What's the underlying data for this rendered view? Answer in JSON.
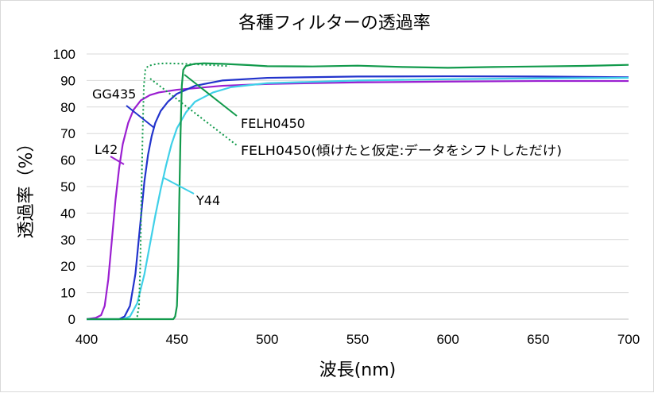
{
  "chart_data": {
    "type": "line",
    "title": "各種フィルターの透過率",
    "xlabel": "波長(nm)",
    "ylabel": "透過率（%）",
    "xlim": [
      400,
      700
    ],
    "ylim": [
      0,
      100
    ],
    "xticks": [
      400,
      450,
      500,
      550,
      600,
      650,
      700
    ],
    "yticks": [
      0,
      10,
      20,
      30,
      40,
      50,
      60,
      70,
      80,
      90,
      100
    ],
    "grid": "horizontal",
    "legend": "none",
    "series": [
      {
        "name": "L42",
        "color": "#9b1fd1",
        "dashed": false,
        "points": [
          [
            400,
            0
          ],
          [
            405,
            0.5
          ],
          [
            408,
            1.5
          ],
          [
            410,
            5
          ],
          [
            412,
            15
          ],
          [
            414,
            30
          ],
          [
            416,
            45
          ],
          [
            418,
            57
          ],
          [
            420,
            66
          ],
          [
            423,
            74
          ],
          [
            426,
            79
          ],
          [
            430,
            82.5
          ],
          [
            435,
            84.5
          ],
          [
            440,
            85.5
          ],
          [
            450,
            86.5
          ],
          [
            475,
            88
          ],
          [
            500,
            88.7
          ],
          [
            550,
            89.3
          ],
          [
            600,
            89.6
          ],
          [
            650,
            89.8
          ],
          [
            700,
            89.8
          ]
        ]
      },
      {
        "name": "GG435",
        "color": "#2233cc",
        "dashed": false,
        "points": [
          [
            400,
            0
          ],
          [
            418,
            0
          ],
          [
            421,
            1
          ],
          [
            424,
            5
          ],
          [
            427,
            17
          ],
          [
            430,
            38
          ],
          [
            432,
            52
          ],
          [
            434,
            62
          ],
          [
            436,
            69
          ],
          [
            438,
            74
          ],
          [
            441,
            78.5
          ],
          [
            445,
            82
          ],
          [
            450,
            85
          ],
          [
            460,
            88
          ],
          [
            475,
            90
          ],
          [
            500,
            91
          ],
          [
            550,
            91.5
          ],
          [
            600,
            91.6
          ],
          [
            650,
            91.5
          ],
          [
            700,
            91.2
          ]
        ]
      },
      {
        "name": "Y44",
        "color": "#3fd0e8",
        "dashed": false,
        "points": [
          [
            400,
            0
          ],
          [
            420,
            0
          ],
          [
            424,
            1
          ],
          [
            428,
            6
          ],
          [
            432,
            17
          ],
          [
            435,
            28
          ],
          [
            438,
            39
          ],
          [
            441,
            49
          ],
          [
            444,
            58
          ],
          [
            447,
            66
          ],
          [
            450,
            72
          ],
          [
            455,
            78
          ],
          [
            460,
            82
          ],
          [
            470,
            85.5
          ],
          [
            480,
            87.5
          ],
          [
            500,
            89
          ],
          [
            550,
            90
          ],
          [
            600,
            90.5
          ],
          [
            650,
            90.8
          ],
          [
            700,
            91
          ]
        ]
      },
      {
        "name": "FELH0450",
        "color": "#129a4c",
        "dashed": false,
        "points": [
          [
            400,
            0
          ],
          [
            448,
            0
          ],
          [
            449,
            1
          ],
          [
            450,
            5
          ],
          [
            450.7,
            20
          ],
          [
            451.3,
            45
          ],
          [
            452,
            70
          ],
          [
            452.7,
            88
          ],
          [
            453.5,
            94
          ],
          [
            455,
            95.5
          ],
          [
            460,
            96.3
          ],
          [
            465,
            96.5
          ],
          [
            475,
            96.3
          ],
          [
            490,
            95.8
          ],
          [
            500,
            95.4
          ],
          [
            525,
            95.3
          ],
          [
            550,
            95.6
          ],
          [
            575,
            95.1
          ],
          [
            600,
            94.8
          ],
          [
            625,
            95.1
          ],
          [
            650,
            95.3
          ],
          [
            675,
            95.5
          ],
          [
            700,
            95.9
          ]
        ]
      },
      {
        "name": "FELH0450(傾けたと仮定:データをシフトしただけ)",
        "color": "#129a4c",
        "dashed": true,
        "points": [
          [
            400,
            0
          ],
          [
            427,
            0
          ],
          [
            428,
            1
          ],
          [
            429,
            5
          ],
          [
            429.7,
            20
          ],
          [
            430.3,
            45
          ],
          [
            431,
            70
          ],
          [
            431.7,
            88
          ],
          [
            432.5,
            94
          ],
          [
            434,
            95.5
          ],
          [
            439,
            96.3
          ],
          [
            444,
            96.5
          ],
          [
            454,
            96.3
          ],
          [
            469,
            95.8
          ],
          [
            479,
            95.4
          ]
        ]
      }
    ],
    "annotations": [
      {
        "text": "GG435",
        "series": "GG435"
      },
      {
        "text": "L42",
        "series": "L42"
      },
      {
        "text": "Y44",
        "series": "Y44"
      },
      {
        "text": "FELH0450",
        "series": "FELH0450"
      },
      {
        "text": "FELH0450(傾けたと仮定:データをシフトしただけ)",
        "series": "FELH0450(傾けたと仮定:データをシフトしただけ)"
      }
    ]
  }
}
